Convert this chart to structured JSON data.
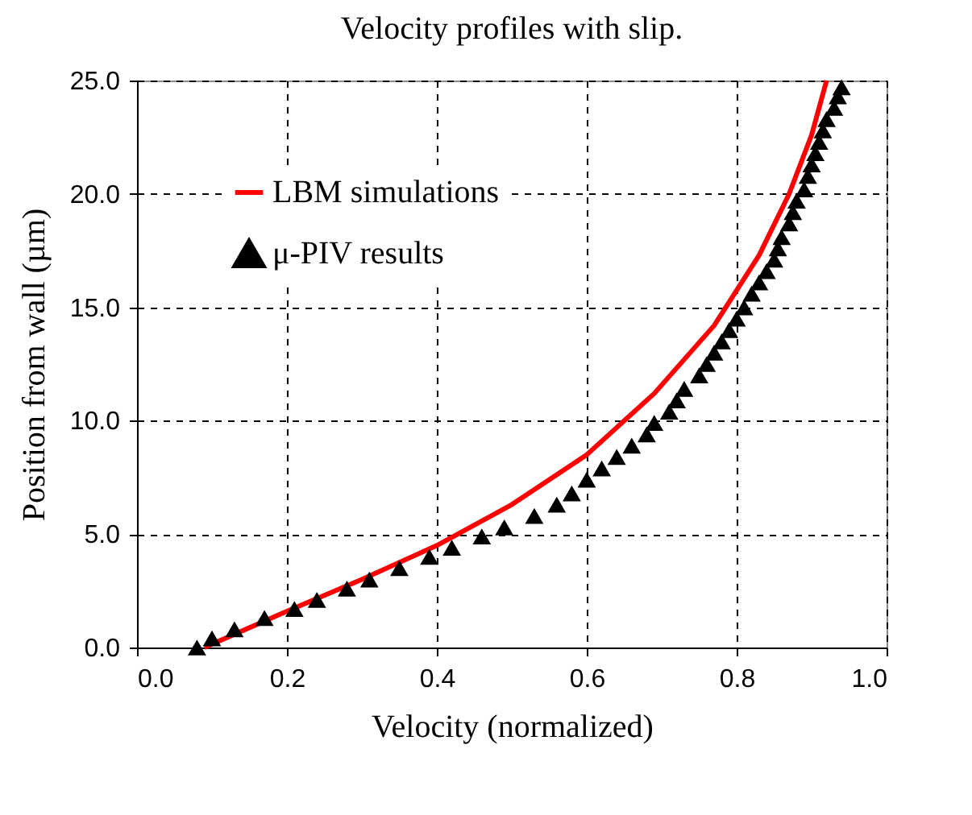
{
  "chart_data": {
    "type": "line",
    "title": "Velocity profiles with slip.",
    "xlabel": "Velocity (normalized)",
    "ylabel": "Position from wall (µm)",
    "xlim": [
      0,
      1
    ],
    "xticks": [
      {
        "value": 0,
        "label": "0.0"
      },
      {
        "value": 0.2,
        "label": "0.2"
      },
      {
        "value": 0.4,
        "label": "0.4"
      },
      {
        "value": 0.6,
        "label": "0.6"
      },
      {
        "value": 0.8,
        "label": "0.8"
      },
      {
        "value": 1,
        "label": "1.0"
      }
    ],
    "ylim": [
      0,
      25
    ],
    "yticks": [
      {
        "value": 0,
        "label": "0.0"
      },
      {
        "value": 5,
        "label": "5.0"
      },
      {
        "value": 10,
        "label": "10.0"
      },
      {
        "value": 15,
        "label": "15.0"
      },
      {
        "value": 20,
        "label": "20.0"
      },
      {
        "value": 25,
        "label": "25.0"
      }
    ],
    "grid": true,
    "legend": "top left",
    "series": [
      {
        "name": "LBM simulations",
        "type": "line",
        "color": "#ff0000",
        "line_style": "solid",
        "marker": "none",
        "x": [
          0.09,
          0.2,
          0.3,
          0.4,
          0.5,
          0.6,
          0.69,
          0.77,
          0.83,
          0.87,
          0.9,
          0.92
        ],
        "values": [
          0,
          1.6,
          3.0,
          4.5,
          6.3,
          8.5,
          11.2,
          14.2,
          17.3,
          20.0,
          22.6,
          25.0
        ]
      },
      {
        "name": "μ-PIV results",
        "type": "scatter",
        "color": "#000000",
        "marker": "triangle",
        "x": [
          0.08,
          0.1,
          0.13,
          0.17,
          0.21,
          0.24,
          0.28,
          0.31,
          0.35,
          0.39,
          0.42,
          0.46,
          0.49,
          0.53,
          0.56,
          0.58,
          0.6,
          0.62,
          0.64,
          0.66,
          0.68,
          0.69,
          0.71,
          0.72,
          0.73,
          0.75,
          0.76,
          0.77,
          0.78,
          0.79,
          0.8,
          0.81,
          0.82,
          0.83,
          0.84,
          0.85,
          0.855,
          0.86,
          0.87,
          0.875,
          0.88,
          0.89,
          0.895,
          0.9,
          0.905,
          0.91,
          0.915,
          0.92,
          0.93,
          0.935,
          0.94
        ],
        "values": [
          0,
          0.4,
          0.8,
          1.3,
          1.7,
          2.1,
          2.6,
          3.0,
          3.5,
          4.0,
          4.4,
          4.9,
          5.3,
          5.8,
          6.3,
          6.8,
          7.4,
          7.9,
          8.4,
          8.9,
          9.4,
          9.9,
          10.4,
          10.9,
          11.4,
          12.0,
          12.5,
          13.0,
          13.5,
          14.0,
          14.5,
          15.0,
          15.6,
          16.1,
          16.6,
          17.1,
          17.6,
          18.1,
          18.7,
          19.2,
          19.7,
          20.2,
          20.8,
          21.3,
          21.8,
          22.3,
          22.8,
          23.3,
          23.8,
          24.3,
          24.7
        ]
      }
    ]
  }
}
